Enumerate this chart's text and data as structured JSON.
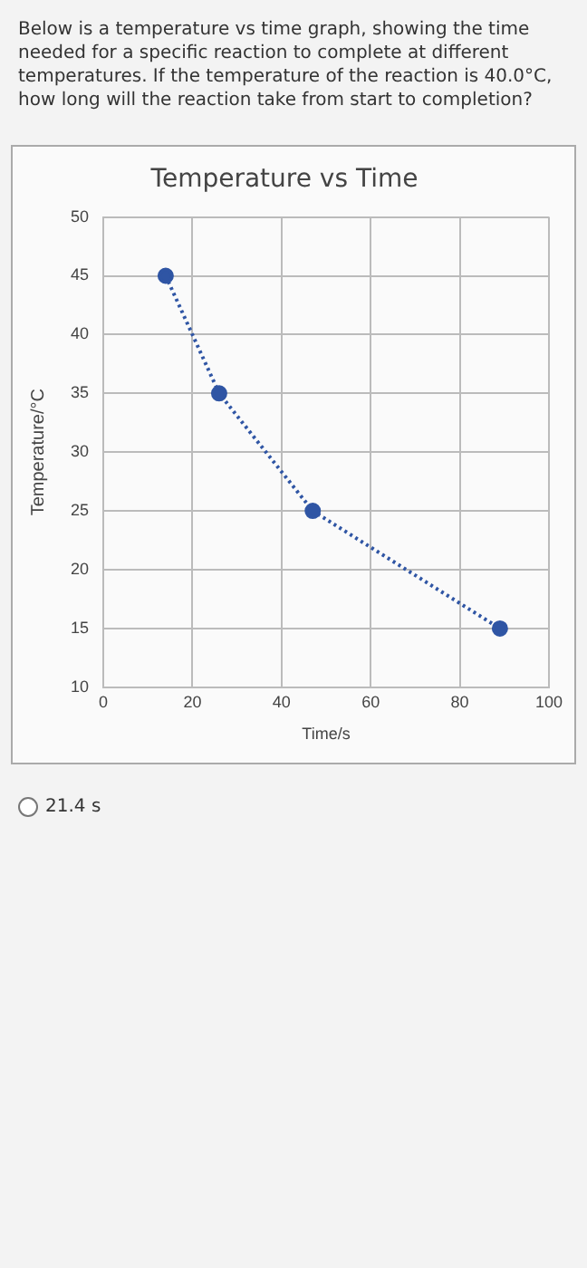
{
  "chart_data": {
    "type": "line",
    "title": "Temperature vs Time",
    "xlabel": "Time/s",
    "ylabel": "Temperature/°C",
    "annotations": [
      "Below is a temperature vs time graph, showing the time needed for a specific reaction to complete at different temperatures. If the temperature of the reaction is 40.0°C, how long will the reaction take from start to completion?",
      "21.4 s"
    ],
    "x": [
      14,
      26,
      47,
      89
    ],
    "series": [
      {
        "color": "#2f55a4",
        "values": [
          45,
          35,
          25,
          15
        ]
      }
    ],
    "xlim": [
      0,
      100
    ],
    "xticks": [
      0,
      20,
      40,
      60,
      80,
      100
    ],
    "ylim": [
      10,
      50
    ],
    "yticks": [
      10,
      15,
      20,
      25,
      30,
      35,
      40,
      45,
      50
    ],
    "grid": true,
    "legend": false,
    "marker": "circle",
    "line_style": "dotted"
  }
}
